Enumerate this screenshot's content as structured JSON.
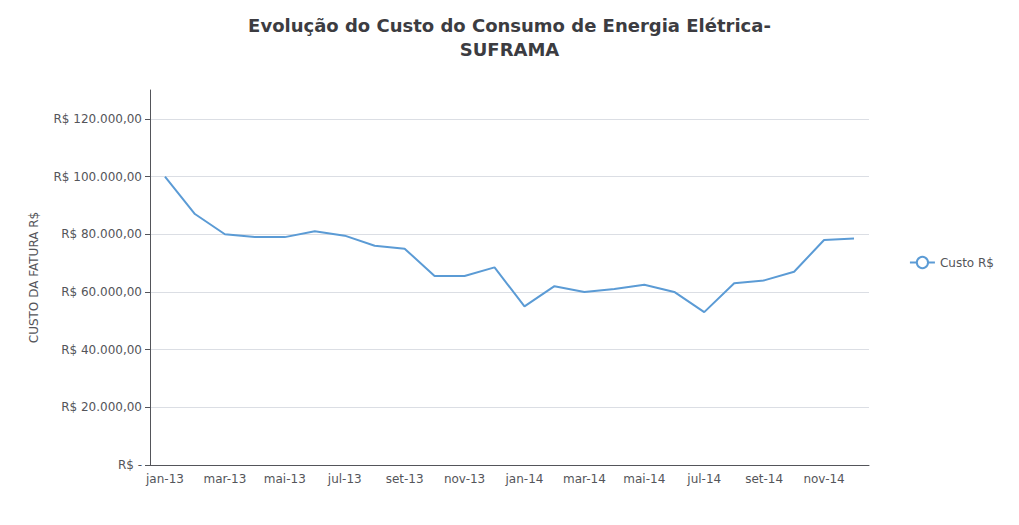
{
  "chart_data": {
    "type": "line",
    "title": "Evolução do Custo do Consumo de Energia Elétrica-\nSUFRAMA",
    "ylabel": "CUSTO DA FATURA R$",
    "categories": [
      "jan-13",
      null,
      "mar-13",
      null,
      "mai-13",
      null,
      "jul-13",
      null,
      "set-13",
      null,
      "nov-13",
      null,
      "jan-14",
      null,
      "mar-14",
      null,
      "mai-14",
      null,
      "jul-14",
      null,
      "set-14",
      null,
      "nov-14",
      null
    ],
    "series": [
      {
        "name": "Custo R$",
        "color": "#5B9BD5",
        "values": [
          100000,
          87000,
          80000,
          79000,
          79000,
          81000,
          79500,
          76000,
          75000,
          65500,
          65500,
          68500,
          55000,
          62000,
          60000,
          61000,
          62500,
          60000,
          53000,
          63000,
          64000,
          67000,
          78000,
          78500
        ]
      }
    ],
    "ylim": [
      0,
      130000
    ],
    "yticks": [
      {
        "value": 0,
        "label": "R$ -"
      },
      {
        "value": 20000,
        "label": "R$ 20.000,00"
      },
      {
        "value": 40000,
        "label": "R$ 40.000,00"
      },
      {
        "value": 60000,
        "label": "R$ 60.000,00"
      },
      {
        "value": 80000,
        "label": "R$ 80.000,00"
      },
      {
        "value": 100000,
        "label": "R$ 100.000,00"
      },
      {
        "value": 120000,
        "label": "R$ 120.000,00"
      }
    ],
    "grid": true,
    "legend": "right"
  }
}
